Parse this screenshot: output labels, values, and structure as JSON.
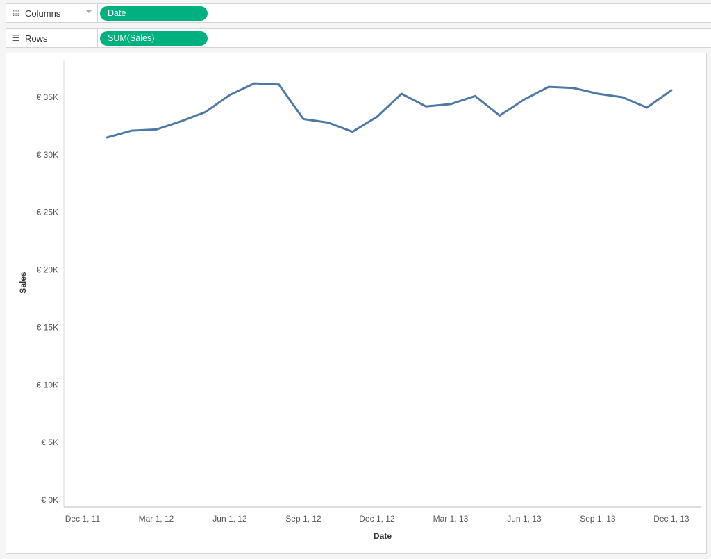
{
  "shelves": {
    "columns": {
      "label": "Columns",
      "icon": "columns-icon",
      "pill": "Date"
    },
    "rows": {
      "label": "Rows",
      "icon": "rows-list-icon",
      "pill": "SUM(Sales)"
    }
  },
  "colors": {
    "line": "#4e79a7",
    "pill": "#00b180"
  },
  "chart_data": {
    "type": "line",
    "title": "",
    "xlabel": "Date",
    "ylabel": "Sales",
    "ylim": [
      0,
      37000
    ],
    "yticks": [
      "€ 0K",
      "€ 5K",
      "€ 10K",
      "€ 15K",
      "€ 20K",
      "€ 25K",
      "€ 30K",
      "€ 35K"
    ],
    "ytick_values": [
      0,
      5000,
      10000,
      15000,
      20000,
      25000,
      30000,
      35000
    ],
    "xticks": [
      "Dec 1, 11",
      "Mar 1, 12",
      "Jun 1, 12",
      "Sep 1, 12",
      "Dec 1, 12",
      "Mar 1, 13",
      "Jun 1, 13",
      "Sep 1, 13",
      "Dec 1, 13"
    ],
    "xtick_values": [
      "2011-12-01",
      "2012-03-01",
      "2012-06-01",
      "2012-09-01",
      "2012-12-01",
      "2013-03-01",
      "2013-06-01",
      "2013-09-01",
      "2013-12-01"
    ],
    "grid": false,
    "x": [
      "2012-01",
      "2012-02",
      "2012-03",
      "2012-04",
      "2012-05",
      "2012-06",
      "2012-07",
      "2012-08",
      "2012-09",
      "2012-10",
      "2012-11",
      "2012-12",
      "2013-01",
      "2013-02",
      "2013-03",
      "2013-04",
      "2013-05",
      "2013-06",
      "2013-07",
      "2013-08",
      "2013-09",
      "2013-10",
      "2013-11",
      "2013-12"
    ],
    "series": [
      {
        "values": [
          31500,
          32100,
          32200,
          32900,
          33700,
          35200,
          36200,
          36100,
          33100,
          32800,
          32000,
          33300,
          35300,
          34200,
          34400,
          35100,
          33400,
          34800,
          35900,
          35800,
          35300,
          35000,
          34100,
          35600
        ]
      }
    ]
  }
}
